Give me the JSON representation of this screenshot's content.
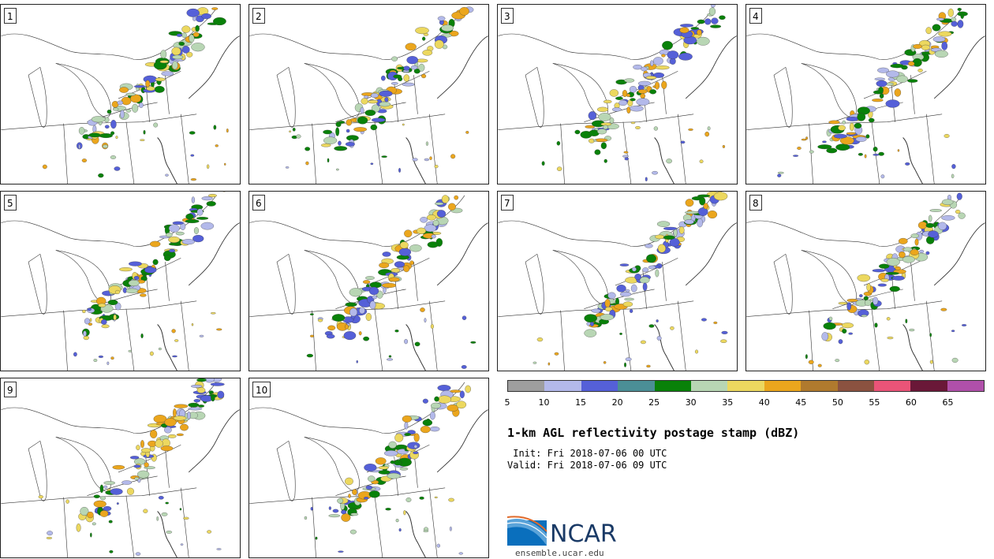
{
  "members": [
    "1",
    "2",
    "3",
    "4",
    "5",
    "6",
    "7",
    "8",
    "9",
    "10"
  ],
  "colorbar": {
    "colors": [
      "#9e9e9e",
      "#b3b9ea",
      "#5560d8",
      "#4b8f96",
      "#098109",
      "#b8d6b4",
      "#ecd85f",
      "#eba61d",
      "#b07a2e",
      "#8b5240",
      "#ea5478",
      "#6a1838",
      "#b050aa"
    ],
    "ticks": [
      "5",
      "10",
      "15",
      "20",
      "25",
      "30",
      "35",
      "40",
      "45",
      "50",
      "55",
      "60",
      "65"
    ]
  },
  "title": "1-km AGL reflectivity postage stamp (dBZ)",
  "init": " Init: Fri 2018-07-06 00 UTC",
  "valid": "Valid: Fri 2018-07-06 09 UTC",
  "logo": {
    "name": "NCAR",
    "url": "ensemble.ucar.edu"
  }
}
